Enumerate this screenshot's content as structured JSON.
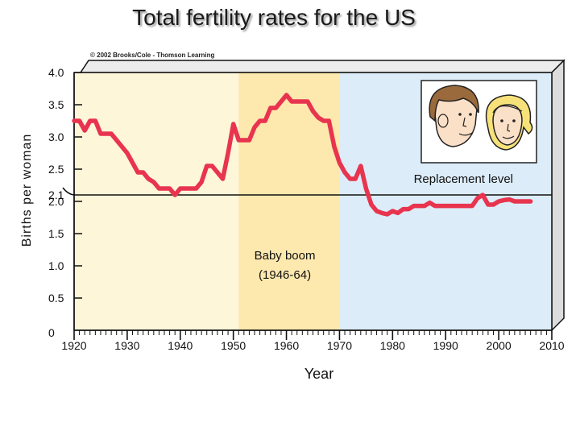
{
  "chart_data": {
    "type": "line",
    "title": "Total fertility rates for the US",
    "credit": "© 2002 Brooks/Cole - Thomson Learning",
    "xlabel": "Year",
    "ylabel": "Births per woman",
    "xlim": [
      1920,
      2010
    ],
    "ylim": [
      0,
      4.0
    ],
    "grid": false,
    "x_ticks": [
      1920,
      1930,
      1940,
      1950,
      1960,
      1970,
      1980,
      1990,
      2000,
      2010
    ],
    "y_ticks": [
      {
        "value": 4.0,
        "label": "4.0"
      },
      {
        "value": 3.5,
        "label": "3.5"
      },
      {
        "value": 3.0,
        "label": "3.0"
      },
      {
        "value": 2.5,
        "label": "2.5"
      },
      {
        "value": 2.1,
        "label": "2.1"
      },
      {
        "value": 2.0,
        "label": "2.0"
      },
      {
        "value": 1.5,
        "label": "1.5"
      },
      {
        "value": 1.0,
        "label": "1.0"
      },
      {
        "value": 0.5,
        "label": "0.5"
      },
      {
        "value": 0,
        "label": "0"
      }
    ],
    "bands": [
      {
        "name": "pre-boom",
        "x0": 1920,
        "x1": 1951,
        "color": "#fdf6d8"
      },
      {
        "name": "baby-boom",
        "x0": 1951,
        "x1": 1970,
        "color": "#fde8ae"
      },
      {
        "name": "post-boom",
        "x0": 1970,
        "x1": 2010,
        "color": "#dcecf8"
      }
    ],
    "replacement_level": {
      "value": 2.1,
      "label": "Replacement level"
    },
    "annotations": [
      {
        "text": "Baby boom",
        "x": 1960,
        "y": 1.0
      },
      {
        "text": "(1946-64)",
        "x": 1960,
        "y": 0.7
      }
    ],
    "series": [
      {
        "color": "#e8344e",
        "points": [
          [
            1920,
            3.25
          ],
          [
            1921,
            3.25
          ],
          [
            1922,
            3.1
          ],
          [
            1923,
            3.25
          ],
          [
            1924,
            3.25
          ],
          [
            1925,
            3.05
          ],
          [
            1926,
            3.05
          ],
          [
            1927,
            3.05
          ],
          [
            1928,
            2.95
          ],
          [
            1929,
            2.85
          ],
          [
            1930,
            2.75
          ],
          [
            1931,
            2.6
          ],
          [
            1932,
            2.45
          ],
          [
            1933,
            2.45
          ],
          [
            1934,
            2.35
          ],
          [
            1935,
            2.3
          ],
          [
            1936,
            2.2
          ],
          [
            1937,
            2.2
          ],
          [
            1938,
            2.2
          ],
          [
            1939,
            2.1
          ],
          [
            1940,
            2.2
          ],
          [
            1941,
            2.2
          ],
          [
            1942,
            2.2
          ],
          [
            1943,
            2.2
          ],
          [
            1944,
            2.3
          ],
          [
            1945,
            2.55
          ],
          [
            1946,
            2.55
          ],
          [
            1947,
            2.45
          ],
          [
            1948,
            2.35
          ],
          [
            1949,
            2.75
          ],
          [
            1950,
            3.2
          ],
          [
            1951,
            2.95
          ],
          [
            1952,
            2.95
          ],
          [
            1953,
            2.95
          ],
          [
            1954,
            3.15
          ],
          [
            1955,
            3.25
          ],
          [
            1956,
            3.25
          ],
          [
            1957,
            3.45
          ],
          [
            1958,
            3.45
          ],
          [
            1959,
            3.55
          ],
          [
            1960,
            3.65
          ],
          [
            1961,
            3.55
          ],
          [
            1962,
            3.55
          ],
          [
            1963,
            3.55
          ],
          [
            1964,
            3.55
          ],
          [
            1965,
            3.4
          ],
          [
            1966,
            3.3
          ],
          [
            1967,
            3.25
          ],
          [
            1968,
            3.25
          ],
          [
            1969,
            2.85
          ],
          [
            1970,
            2.6
          ],
          [
            1971,
            2.45
          ],
          [
            1972,
            2.35
          ],
          [
            1973,
            2.35
          ],
          [
            1974,
            2.55
          ],
          [
            1975,
            2.2
          ],
          [
            1976,
            1.95
          ],
          [
            1977,
            1.85
          ],
          [
            1978,
            1.82
          ],
          [
            1979,
            1.8
          ],
          [
            1980,
            1.85
          ],
          [
            1981,
            1.82
          ],
          [
            1982,
            1.88
          ],
          [
            1983,
            1.88
          ],
          [
            1984,
            1.93
          ],
          [
            1985,
            1.93
          ],
          [
            1986,
            1.93
          ],
          [
            1987,
            1.98
          ],
          [
            1988,
            1.93
          ],
          [
            1989,
            1.93
          ],
          [
            1990,
            1.93
          ],
          [
            1991,
            1.93
          ],
          [
            1992,
            1.93
          ],
          [
            1993,
            1.93
          ],
          [
            1994,
            1.93
          ],
          [
            1995,
            1.93
          ],
          [
            1996,
            2.05
          ],
          [
            1997,
            2.1
          ],
          [
            1998,
            1.95
          ],
          [
            1999,
            1.95
          ],
          [
            2000,
            2.0
          ],
          [
            2001,
            2.02
          ],
          [
            2002,
            2.03
          ],
          [
            2003,
            2.0
          ],
          [
            2004,
            2.0
          ],
          [
            2005,
            2.0
          ],
          [
            2006,
            2.0
          ]
        ]
      }
    ]
  }
}
